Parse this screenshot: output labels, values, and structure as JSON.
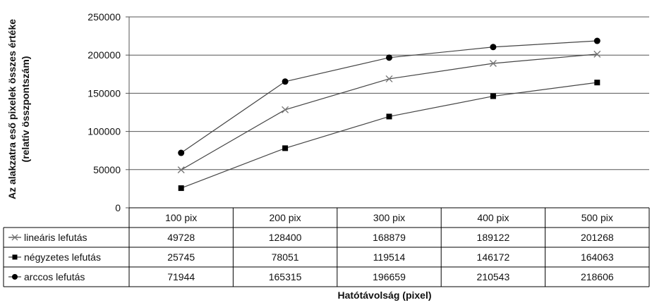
{
  "chart_data": {
    "type": "line",
    "categories": [
      "100 pix",
      "200 pix",
      "300 pix",
      "400 pix",
      "500 pix"
    ],
    "ylim": [
      0,
      250000
    ],
    "yticks": [
      0,
      50000,
      100000,
      150000,
      200000,
      250000
    ],
    "ylabel_lines": [
      "Az alakzatra eső pixelek összes értéke",
      "(relatív összpontszám)"
    ],
    "xlabel": "Hatótávolság (pixel)",
    "grid": "horizontal",
    "series": [
      {
        "name": "lineáris lefutás",
        "marker": "x",
        "values": [
          49728,
          128400,
          168879,
          189122,
          201268
        ]
      },
      {
        "name": "négyzetes lefutás",
        "marker": "square",
        "values": [
          25745,
          78051,
          119514,
          146172,
          164063
        ]
      },
      {
        "name": "arccos lefutás",
        "marker": "circle",
        "values": [
          71944,
          165315,
          196659,
          210543,
          218606
        ]
      }
    ],
    "colors": {
      "lines": "#444444",
      "markers": "#000000",
      "x_marker": "#777777",
      "grid": "#555555",
      "table": "#000000"
    }
  }
}
